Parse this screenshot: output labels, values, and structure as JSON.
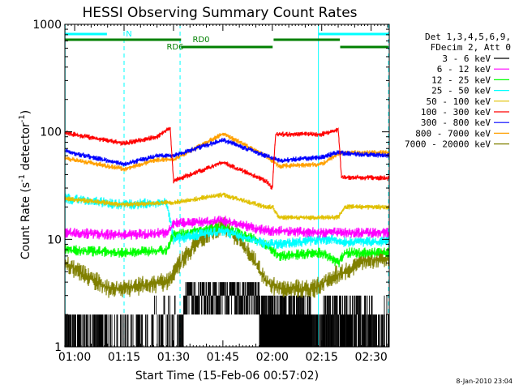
{
  "chart_data": {
    "type": "line",
    "title": "HESSI Observing Summary Count Rates",
    "xlabel": "Start Time (15-Feb-06 00:57:02)",
    "ylabel_main": "Count Rate (s",
    "ylabel_sup1": "-1",
    "ylabel_mid": " detector",
    "ylabel_sup2": "-1",
    "ylabel_end": ")",
    "footer": "8-Jan-2010 23:04",
    "xlim_min": [
      57.03,
      155.5
    ],
    "ylim": [
      1,
      1000
    ],
    "yscale": "log",
    "x_ticks": [
      {
        "label": "01:00",
        "value": 60
      },
      {
        "label": "01:15",
        "value": 75
      },
      {
        "label": "01:30",
        "value": 90
      },
      {
        "label": "01:45",
        "value": 105
      },
      {
        "label": "02:00",
        "value": 120
      },
      {
        "label": "02:15",
        "value": 135
      },
      {
        "label": "02:30",
        "value": 150
      }
    ],
    "y_ticks": [
      {
        "label": "1",
        "value": 1
      },
      {
        "label": "10",
        "value": 10
      },
      {
        "label": "100",
        "value": 100
      },
      {
        "label": "1000",
        "value": 1000
      }
    ],
    "legend_header": [
      "Det 1,3,4,5,6,9,",
      "FDecim 2, Att 0"
    ],
    "legend_position": "right",
    "series": [
      {
        "name": "3 - 6 keV",
        "color": "#000000",
        "kind": "noise_low",
        "points": [
          [
            57,
            1.5
          ],
          [
            68,
            1.6
          ],
          [
            75,
            1
          ],
          [
            91,
            1.4
          ],
          [
            95,
            2.5
          ],
          [
            105,
            3.5
          ],
          [
            113,
            3.0
          ],
          [
            118,
            1.5
          ],
          [
            127,
            2.4
          ],
          [
            133,
            1.7
          ],
          [
            138,
            2.5
          ],
          [
            145,
            2.2
          ],
          [
            155,
            1.8
          ]
        ]
      },
      {
        "name": "6 - 12 keV",
        "color": "#ff00ff",
        "points": [
          [
            57,
            11.5
          ],
          [
            75,
            11
          ],
          [
            88,
            11.5
          ],
          [
            90,
            14
          ],
          [
            105,
            15
          ],
          [
            118,
            12
          ],
          [
            122,
            12
          ],
          [
            135,
            11.5
          ],
          [
            138,
            12
          ],
          [
            140,
            11.5
          ],
          [
            155,
            11.5
          ]
        ]
      },
      {
        "name": "12 - 25 keV",
        "color": "#00ff00",
        "points": [
          [
            57,
            8
          ],
          [
            75,
            7.5
          ],
          [
            88,
            8
          ],
          [
            90,
            11
          ],
          [
            105,
            13
          ],
          [
            118,
            9
          ],
          [
            122,
            7
          ],
          [
            135,
            7.5
          ],
          [
            140,
            6
          ],
          [
            142,
            7.5
          ],
          [
            155,
            7.5
          ]
        ]
      },
      {
        "name": "25 - 50 keV",
        "color": "#00ffff",
        "points": [
          [
            57,
            24
          ],
          [
            75,
            21
          ],
          [
            88,
            22
          ],
          [
            90,
            10
          ],
          [
            105,
            12
          ],
          [
            118,
            9
          ],
          [
            122,
            9
          ],
          [
            135,
            10
          ],
          [
            138,
            10
          ],
          [
            140,
            9.5
          ],
          [
            155,
            9.5
          ]
        ]
      },
      {
        "name": "50 - 100 keV",
        "color": "#e0c000",
        "points": [
          [
            57,
            24
          ],
          [
            75,
            21
          ],
          [
            88,
            22
          ],
          [
            90,
            22
          ],
          [
            105,
            26
          ],
          [
            118,
            20
          ],
          [
            120,
            20
          ],
          [
            122,
            16
          ],
          [
            135,
            16
          ],
          [
            140,
            16
          ],
          [
            142,
            20
          ],
          [
            155,
            20
          ]
        ]
      },
      {
        "name": "100 - 300 keV",
        "color": "#ff0000",
        "points": [
          [
            57,
            98
          ],
          [
            75,
            78
          ],
          [
            85,
            90
          ],
          [
            89,
            110
          ],
          [
            90,
            35
          ],
          [
            105,
            52
          ],
          [
            118,
            35
          ],
          [
            120,
            30
          ],
          [
            121,
            95
          ],
          [
            135,
            95
          ],
          [
            140,
            105
          ],
          [
            141,
            38
          ],
          [
            155,
            37
          ]
        ]
      },
      {
        "name": "300 - 800 keV",
        "color": "#0000ff",
        "points": [
          [
            57,
            66
          ],
          [
            75,
            50
          ],
          [
            85,
            60
          ],
          [
            90,
            60
          ],
          [
            105,
            84
          ],
          [
            118,
            60
          ],
          [
            122,
            54
          ],
          [
            135,
            58
          ],
          [
            140,
            65
          ],
          [
            142,
            63
          ],
          [
            155,
            60
          ]
        ]
      },
      {
        "name": "800 - 7000 keV",
        "color": "#ffa000",
        "points": [
          [
            57,
            57
          ],
          [
            75,
            45
          ],
          [
            85,
            55
          ],
          [
            90,
            55
          ],
          [
            105,
            96
          ],
          [
            118,
            60
          ],
          [
            122,
            48
          ],
          [
            135,
            50
          ],
          [
            140,
            62
          ],
          [
            142,
            64
          ],
          [
            155,
            64
          ]
        ]
      },
      {
        "name": "7000 - 20000 keV",
        "color": "#808000",
        "points": [
          [
            57,
            6
          ],
          [
            64,
            4.5
          ],
          [
            70,
            3.5
          ],
          [
            75,
            3.5
          ],
          [
            88,
            4
          ],
          [
            92,
            6
          ],
          [
            98,
            10
          ],
          [
            105,
            13.5
          ],
          [
            110,
            10
          ],
          [
            115,
            6
          ],
          [
            118,
            4
          ],
          [
            122,
            3.5
          ],
          [
            133,
            3.5
          ],
          [
            138,
            4.5
          ],
          [
            142,
            5
          ],
          [
            148,
            6.5
          ],
          [
            155,
            6.5
          ]
        ]
      }
    ],
    "cyan_verticals": [
      {
        "x": 57.1,
        "style": "solid"
      },
      {
        "x": 75,
        "style": "dashed"
      },
      {
        "x": 92,
        "style": "dashed"
      },
      {
        "x": 134,
        "style": "solid"
      },
      {
        "x": 155.3,
        "style": "dashed"
      }
    ],
    "flag_bars": [
      {
        "label": "N",
        "color": "#00ffff",
        "level": 0,
        "segments": [
          [
            57.1,
            69.8
          ],
          [
            134,
            155.4
          ]
        ]
      },
      {
        "label": "RD0",
        "color": "#008000",
        "level": 1,
        "segments": [
          [
            57.1,
            92.3
          ],
          [
            120.4,
            140.5
          ]
        ]
      },
      {
        "label": "RD6",
        "color": "#008000",
        "level": 2,
        "segments": [
          [
            92.3,
            120.1
          ],
          [
            140.6,
            155.2
          ]
        ]
      }
    ]
  }
}
